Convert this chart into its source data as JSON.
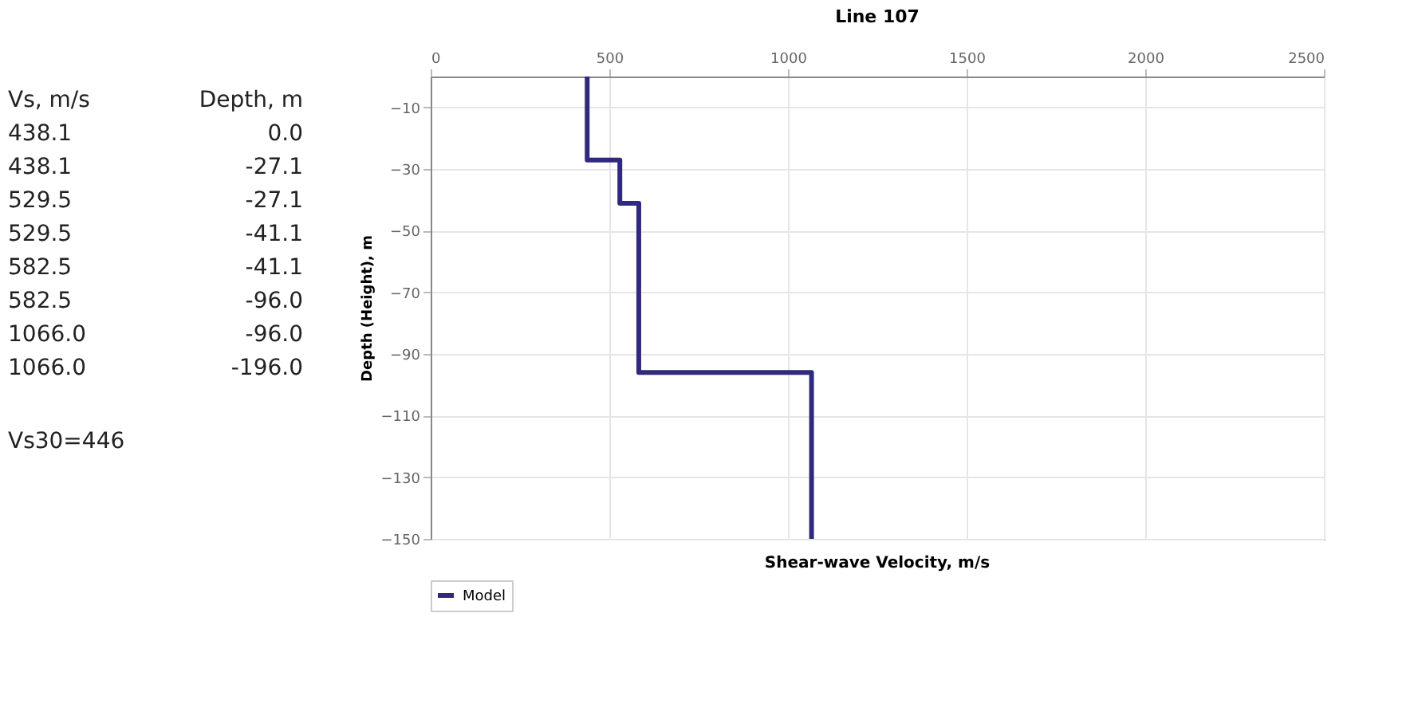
{
  "chart_data": {
    "type": "line",
    "title": "Line 107",
    "xlabel": "Shear-wave Velocity, m/s",
    "ylabel": "Depth (Height), m",
    "x": [
      438.1,
      438.1,
      529.5,
      529.5,
      582.5,
      582.5,
      1066.0,
      1066.0
    ],
    "series": [
      {
        "name": "Model",
        "color": "#2f2a7c",
        "values": [
          0.0,
          -27.1,
          -27.1,
          -41.1,
          -41.1,
          -96.0,
          -96.0,
          -150
        ]
      }
    ],
    "xlim": [
      0,
      2500
    ],
    "xticks": [
      0,
      500,
      1000,
      1500,
      2000,
      2500
    ],
    "ylim": [
      -150,
      0
    ],
    "yticks": [
      -10,
      -30,
      -50,
      -70,
      -90,
      -110,
      -130,
      -150
    ],
    "grid": true,
    "legend": "bottom",
    "marker": "none",
    "line_style": "solid",
    "annotations": [
      "Vs, m/s",
      "Depth, m",
      "438.1",
      "0.0",
      "438.1",
      "-27.1",
      "529.5",
      "-27.1",
      "529.5",
      "-41.1",
      "582.5",
      "-41.1",
      "582.5",
      "-96.0",
      "1066.0",
      "-96.0",
      "1066.0",
      "-196.0",
      "Vs30=446"
    ]
  }
}
